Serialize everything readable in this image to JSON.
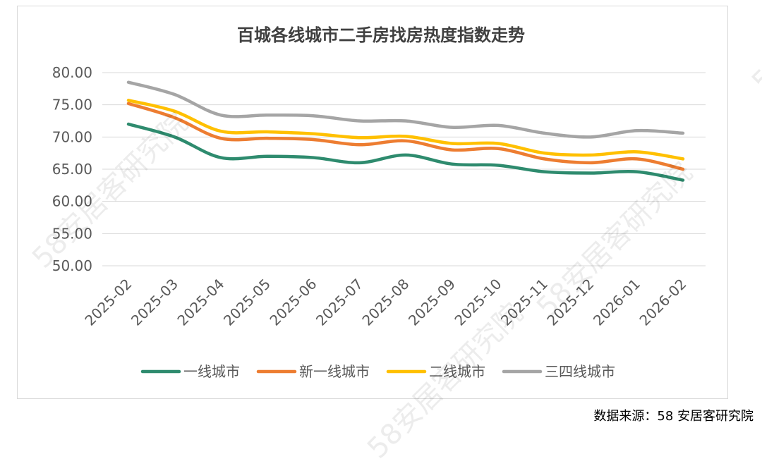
{
  "chart_data": {
    "type": "line",
    "title": "百城各线城市二手房找房热度指数走势",
    "categories": [
      "2025-02",
      "2025-03",
      "2025-04",
      "2025-05",
      "2025-06",
      "2025-07",
      "2025-08",
      "2025-09",
      "2025-10",
      "2025-11",
      "2025-12",
      "2026-01",
      "2026-02"
    ],
    "ylim": [
      50,
      80
    ],
    "yticks": [
      "80.00",
      "75.00",
      "70.00",
      "65.00",
      "60.00",
      "55.00",
      "50.00"
    ],
    "grid": true,
    "legend": "bottom",
    "series": [
      {
        "name": "一线城市",
        "color": "#2e8b6e",
        "values": [
          72.0,
          70.0,
          66.8,
          67.0,
          66.8,
          66.0,
          67.2,
          65.8,
          65.6,
          64.6,
          64.4,
          64.6,
          63.3
        ]
      },
      {
        "name": "新一线城市",
        "color": "#ed7d31",
        "values": [
          75.2,
          73.0,
          69.8,
          69.8,
          69.6,
          68.8,
          69.4,
          68.0,
          68.2,
          66.6,
          66.0,
          66.6,
          65.0
        ]
      },
      {
        "name": "二线城市",
        "color": "#ffc000",
        "values": [
          75.7,
          74.0,
          70.9,
          70.8,
          70.5,
          69.9,
          70.1,
          69.0,
          69.0,
          67.5,
          67.2,
          67.7,
          66.6
        ]
      },
      {
        "name": "三四线城市",
        "color": "#a5a5a5",
        "values": [
          78.5,
          76.6,
          73.4,
          73.4,
          73.3,
          72.5,
          72.5,
          71.5,
          71.8,
          70.6,
          70.0,
          71.0,
          70.6
        ]
      }
    ]
  },
  "footer": {
    "source": "数据来源：58 安居客研究院"
  },
  "watermark": {
    "text": "58安居客研究院"
  }
}
